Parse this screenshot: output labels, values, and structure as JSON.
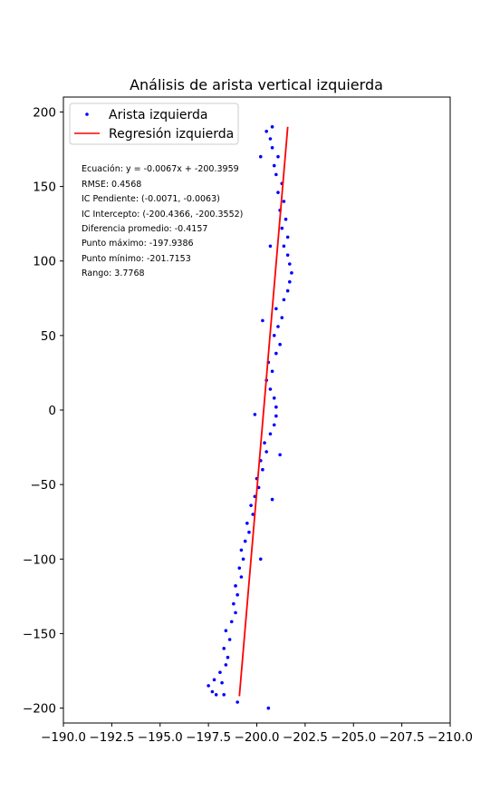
{
  "chart_data": {
    "type": "scatter",
    "title": "Análisis de arista vertical izquierda",
    "xlabel": "",
    "ylabel": "",
    "xlim": [
      -190.0,
      -210.0
    ],
    "ylim": [
      -210,
      210
    ],
    "x_inverted": true,
    "grid": false,
    "legend_position": "top-left",
    "x_ticks": [
      -190.0,
      -192.5,
      -195.0,
      -197.5,
      -200.0,
      -202.5,
      -205.0,
      -207.5,
      -210.0
    ],
    "x_tick_labels": [
      "−190.0",
      "−192.5",
      "−195.0",
      "−197.5",
      "−200.0",
      "−202.5",
      "−205.0",
      "−207.5",
      "−210.0"
    ],
    "y_ticks": [
      -200,
      -150,
      -100,
      -50,
      0,
      50,
      100,
      150,
      200
    ],
    "y_tick_labels": [
      "−200",
      "−150",
      "−100",
      "−50",
      "0",
      "50",
      "100",
      "150",
      "200"
    ],
    "series": [
      {
        "name": "Arista izquierda",
        "kind": "scatter",
        "color": "#0000ff",
        "points": [
          [
            -197.5,
            -185
          ],
          [
            -197.7,
            -189
          ],
          [
            -197.9,
            -191
          ],
          [
            -197.8,
            -181
          ],
          [
            -198.1,
            -176
          ],
          [
            -198.3,
            -191
          ],
          [
            -198.2,
            -183
          ],
          [
            -198.4,
            -171
          ],
          [
            -198.5,
            -166
          ],
          [
            -198.3,
            -160
          ],
          [
            -198.6,
            -154
          ],
          [
            -198.4,
            -148
          ],
          [
            -198.7,
            -142
          ],
          [
            -198.9,
            -136
          ],
          [
            -198.8,
            -130
          ],
          [
            -199.0,
            -124
          ],
          [
            -198.9,
            -118
          ],
          [
            -199.2,
            -112
          ],
          [
            -199.1,
            -106
          ],
          [
            -199.3,
            -100
          ],
          [
            -199.2,
            -94
          ],
          [
            -199.4,
            -88
          ],
          [
            -199.6,
            -82
          ],
          [
            -199.5,
            -76
          ],
          [
            -199.8,
            -70
          ],
          [
            -199.7,
            -64
          ],
          [
            -199.9,
            -58
          ],
          [
            -200.1,
            -52
          ],
          [
            -200.0,
            -46
          ],
          [
            -200.3,
            -40
          ],
          [
            -200.2,
            -34
          ],
          [
            -200.5,
            -28
          ],
          [
            -200.4,
            -22
          ],
          [
            -200.7,
            -16
          ],
          [
            -200.9,
            -10
          ],
          [
            -201.0,
            -4
          ],
          [
            -201.0,
            2
          ],
          [
            -200.9,
            8
          ],
          [
            -200.7,
            14
          ],
          [
            -200.5,
            20
          ],
          [
            -200.8,
            26
          ],
          [
            -200.6,
            32
          ],
          [
            -201.0,
            38
          ],
          [
            -201.2,
            44
          ],
          [
            -200.9,
            50
          ],
          [
            -201.1,
            56
          ],
          [
            -201.3,
            62
          ],
          [
            -201.0,
            68
          ],
          [
            -201.4,
            74
          ],
          [
            -201.6,
            80
          ],
          [
            -201.7,
            86
          ],
          [
            -201.8,
            92
          ],
          [
            -201.7,
            98
          ],
          [
            -201.6,
            104
          ],
          [
            -201.4,
            110
          ],
          [
            -201.6,
            116
          ],
          [
            -201.3,
            122
          ],
          [
            -201.5,
            128
          ],
          [
            -201.2,
            134
          ],
          [
            -201.4,
            140
          ],
          [
            -201.1,
            146
          ],
          [
            -201.3,
            152
          ],
          [
            -201.0,
            158
          ],
          [
            -200.9,
            164
          ],
          [
            -201.1,
            170
          ],
          [
            -200.8,
            176
          ],
          [
            -200.7,
            182
          ],
          [
            -200.5,
            187
          ],
          [
            -200.8,
            190
          ],
          [
            -199.9,
            -3
          ],
          [
            -200.6,
            -200
          ],
          [
            -199.0,
            -196
          ],
          [
            -200.2,
            -100
          ],
          [
            -200.8,
            -60
          ],
          [
            -201.2,
            -30
          ],
          [
            -200.3,
            60
          ],
          [
            -200.7,
            110
          ],
          [
            -200.2,
            170
          ]
        ]
      },
      {
        "name": "Regresión izquierda",
        "kind": "line",
        "color": "#ff0000",
        "points": [
          [
            -199.1,
            -192
          ],
          [
            -201.6,
            190
          ]
        ]
      }
    ],
    "stats": [
      "Ecuación: y = -0.0067x + -200.3959",
      "RMSE: 0.4568",
      "IC Pendiente: (-0.0071, -0.0063)",
      "IC Intercepto: (-200.4366, -200.3552)",
      "Diferencia promedio: -0.4157",
      "Punto máximo: -197.9386",
      "Punto mínimo: -201.7153",
      "Rango: 3.7768"
    ]
  }
}
